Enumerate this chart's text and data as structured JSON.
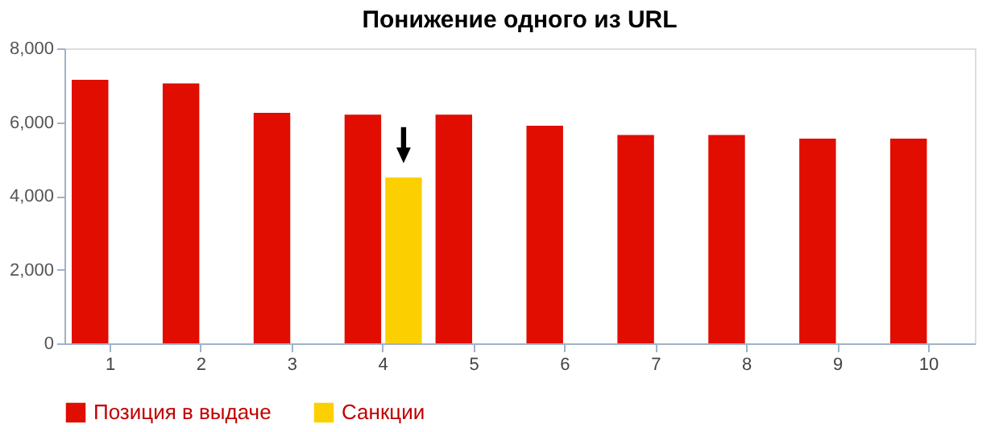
{
  "chart_data": {
    "type": "bar",
    "title": "Понижение одного из URL",
    "categories": [
      "1",
      "2",
      "3",
      "4",
      "5",
      "6",
      "7",
      "8",
      "9",
      "10"
    ],
    "series": [
      {
        "name": "Позиция в выдаче",
        "color": "#e00d00",
        "values": [
          7150,
          7050,
          6250,
          6200,
          6200,
          5900,
          5650,
          5650,
          5550,
          5550
        ]
      },
      {
        "name": "Санкции",
        "color": "#fcd000",
        "values": [
          null,
          null,
          null,
          4500,
          null,
          null,
          null,
          null,
          null,
          null
        ]
      }
    ],
    "ylim": [
      0,
      8000
    ],
    "yticks": [
      0,
      {
        "value": 2000,
        "label": "2,000"
      },
      {
        "value": 4000,
        "label": "4,000"
      },
      {
        "value": 6000,
        "label": "6,000"
      },
      {
        "value": 8000,
        "label": "8,000"
      }
    ],
    "grid": false,
    "legend": "bottom"
  }
}
